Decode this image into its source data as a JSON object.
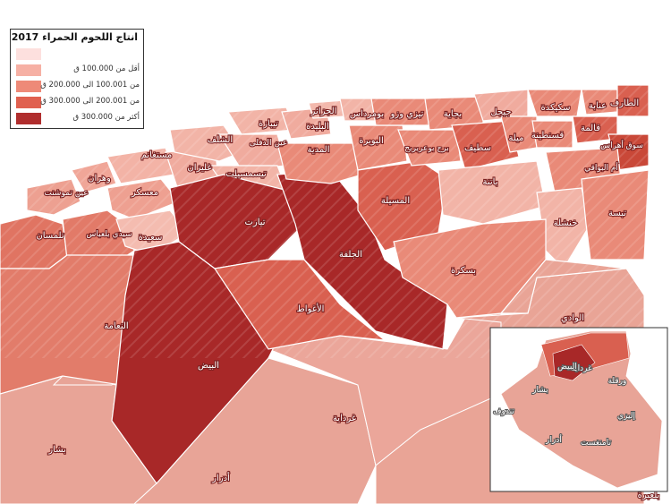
{
  "legend": {
    "title": "انتاج اللحوم الحمراء 2017",
    "classes": [
      {
        "label": "",
        "color": "#fde0de"
      },
      {
        "label": "أقل من 100.000 ق",
        "color": "#f6b0a4"
      },
      {
        "label": "من 100.001 الى 200.000 ق",
        "color": "#ee8a78"
      },
      {
        "label": "من 200.001 الى 300.000 ق",
        "color": "#e0604f"
      },
      {
        "label": "أكثر من 300.000 ق",
        "color": "#b02e2e"
      }
    ]
  },
  "colors": {
    "background": "#ffffff",
    "border": "#ffffff",
    "shade_light": "#f2c1b8",
    "shade_mid": "#e98a78",
    "shade_high": "#d96050",
    "shade_max": "#a82828",
    "south": "#e8a497"
  },
  "regions": [
    {
      "name": "الطارف",
      "class": 3
    },
    {
      "name": "عنابة",
      "class": 2
    },
    {
      "name": "سكيكدة",
      "class": 2
    },
    {
      "name": "قالمة",
      "class": 3
    },
    {
      "name": "جيجل",
      "class": 1
    },
    {
      "name": "بجاية",
      "class": 2
    },
    {
      "name": "تيزي وزو",
      "class": 2
    },
    {
      "name": "بومرداس",
      "class": 1
    },
    {
      "name": "الجزائر",
      "class": 1
    },
    {
      "name": "البليدة",
      "class": 1
    },
    {
      "name": "تيبازة",
      "class": 1
    },
    {
      "name": "البويرة",
      "class": 2
    },
    {
      "name": "برج بوعريريج",
      "class": 2
    },
    {
      "name": "سطيف",
      "class": 3
    },
    {
      "name": "ميلة",
      "class": 2
    },
    {
      "name": "قسنطينة",
      "class": 2
    },
    {
      "name": "سوق أهراس",
      "class": 3
    },
    {
      "name": "أم البواقي",
      "class": 2
    },
    {
      "name": "باتنة",
      "class": 1
    },
    {
      "name": "خنشلة",
      "class": 1
    },
    {
      "name": "تبسة",
      "class": 2
    },
    {
      "name": "بسكرة",
      "class": 2
    },
    {
      "name": "المسيلة",
      "class": 3
    },
    {
      "name": "الجلفة",
      "class": 4
    },
    {
      "name": "الأغواط",
      "class": 3
    },
    {
      "name": "تيارت",
      "class": 4
    },
    {
      "name": "البيض",
      "class": 4
    },
    {
      "name": "المدية",
      "class": 2
    },
    {
      "name": "عين الدفلى",
      "class": 1
    },
    {
      "name": "الشلف",
      "class": 1
    },
    {
      "name": "تيسمسيلت",
      "class": 1
    },
    {
      "name": "غليزان",
      "class": 1
    },
    {
      "name": "مستغانم",
      "class": 1
    },
    {
      "name": "وهران",
      "class": 1
    },
    {
      "name": "معسكر",
      "class": 1
    },
    {
      "name": "عين تموشنت",
      "class": 1
    },
    {
      "name": "تلمسان",
      "class": 2
    },
    {
      "name": "سيدي بلعباس",
      "class": 2
    },
    {
      "name": "سعيدة",
      "class": 1
    },
    {
      "name": "النعامة",
      "class": 2
    },
    {
      "name": "غرداية",
      "class": 1
    },
    {
      "name": "الوادي",
      "class": 1
    },
    {
      "name": "بشار",
      "class": 1
    },
    {
      "name": "أدرار",
      "class": 1
    },
    {
      "name": "بلعبرة",
      "class": 1
    }
  ],
  "inset": {
    "labels": [
      "تندوف",
      "بشار",
      "أدرار",
      "غرداية",
      "ورقلة",
      "إليزي",
      "تامنغست",
      "البيض"
    ]
  }
}
